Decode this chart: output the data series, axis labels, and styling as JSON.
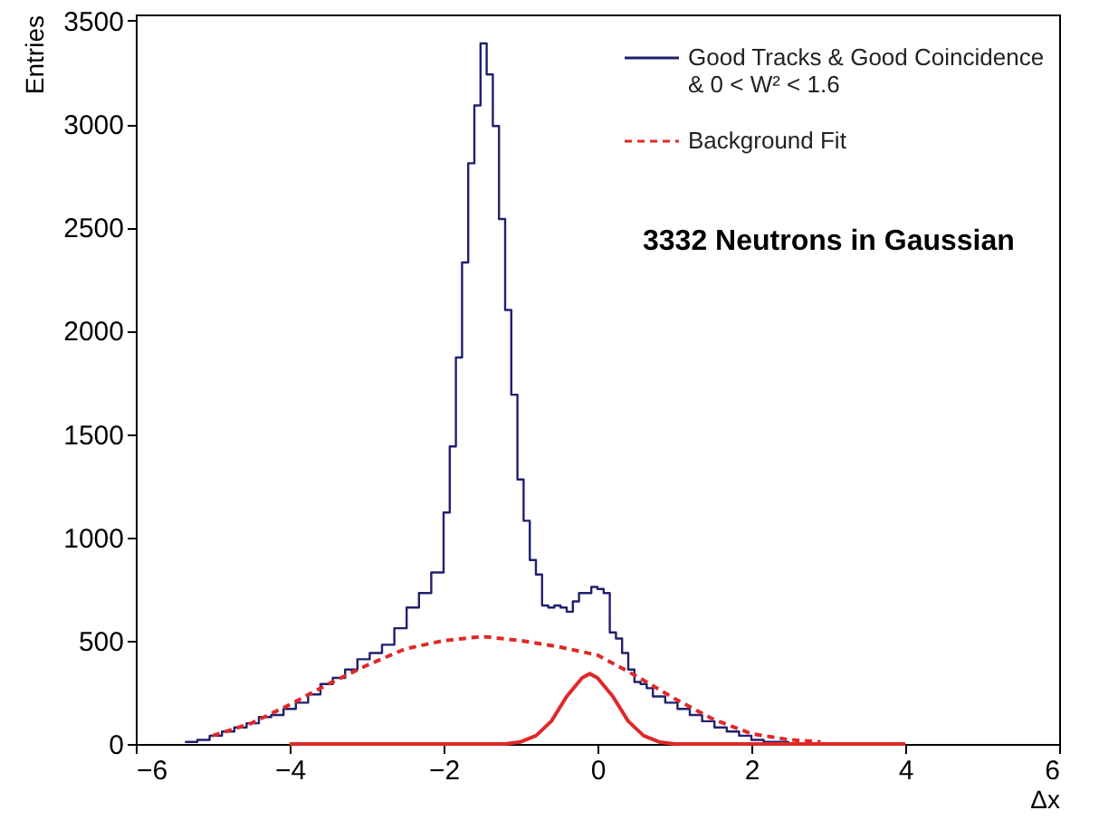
{
  "chart_data": {
    "type": "histogram",
    "xlabel": "Δx",
    "ylabel": "Entries",
    "xlim": [
      -6,
      6
    ],
    "ylim": [
      0,
      3530
    ],
    "xticks": [
      -6,
      -4,
      -2,
      0,
      2,
      4,
      6
    ],
    "yticks": [
      0,
      500,
      1000,
      1500,
      2000,
      2500,
      3000,
      3500
    ],
    "legend": "top right",
    "annotations": [
      "3332 Neutrons in Gaussian"
    ],
    "series": [
      {
        "type": "histogram",
        "name": "Good Tracks & Good Coincidence & 0 < W² < 1.6",
        "color": "#20206e",
        "bins": [
          -5.36,
          -5.2,
          -5.04,
          -4.88,
          -4.72,
          -4.56,
          -4.4,
          -4.24,
          -4.08,
          -3.92,
          -3.76,
          -3.6,
          -3.44,
          -3.28,
          -3.12,
          -2.96,
          -2.8,
          -2.64,
          -2.48,
          -2.32,
          -2.16,
          -2.0,
          -1.92,
          -1.84,
          -1.76,
          -1.68,
          -1.6,
          -1.52,
          -1.44,
          -1.36,
          -1.28,
          -1.2,
          -1.12,
          -1.04,
          -0.96,
          -0.88,
          -0.8,
          -0.72,
          -0.64,
          -0.56,
          -0.48,
          -0.4,
          -0.32,
          -0.24,
          -0.16,
          -0.08,
          0.0,
          0.08,
          0.16,
          0.24,
          0.32,
          0.4,
          0.48,
          0.56,
          0.64,
          0.72,
          0.88,
          1.04,
          1.2,
          1.36,
          1.52,
          1.68,
          1.84,
          2.0,
          2.16,
          2.32,
          2.48,
          2.64
        ],
        "values": [
          10,
          20,
          40,
          60,
          80,
          100,
          130,
          140,
          170,
          200,
          240,
          290,
          320,
          360,
          410,
          440,
          480,
          560,
          660,
          730,
          830,
          1120,
          1440,
          1870,
          2330,
          2810,
          3090,
          3390,
          3240,
          2990,
          2540,
          2100,
          1690,
          1280,
          1080,
          890,
          820,
          670,
          660,
          670,
          660,
          640,
          690,
          730,
          730,
          760,
          750,
          730,
          540,
          510,
          440,
          360,
          300,
          290,
          270,
          230,
          200,
          170,
          140,
          110,
          80,
          60,
          40,
          20,
          10,
          10,
          0
        ]
      },
      {
        "type": "line",
        "name": "Background Fit",
        "color": "#e02828",
        "line_style": "dashed",
        "x": [
          -5.0,
          -4.5,
          -4.0,
          -3.5,
          -3.0,
          -2.5,
          -2.0,
          -1.5,
          -1.0,
          -0.5,
          0.0,
          0.5,
          1.0,
          1.5,
          2.0,
          2.5,
          2.9
        ],
        "values": [
          40,
          100,
          190,
          290,
          380,
          460,
          500,
          520,
          500,
          470,
          430,
          330,
          220,
          120,
          50,
          20,
          10
        ]
      },
      {
        "type": "line",
        "color": "#e02828",
        "line_style": "solid",
        "x": [
          -4.0,
          -1.2,
          -1.0,
          -0.8,
          -0.6,
          -0.4,
          -0.2,
          -0.1,
          0.0,
          0.2,
          0.4,
          0.6,
          0.8,
          1.0,
          4.0
        ],
        "values": [
          0,
          0,
          10,
          40,
          110,
          230,
          320,
          340,
          320,
          230,
          110,
          40,
          10,
          0,
          0
        ]
      }
    ]
  }
}
